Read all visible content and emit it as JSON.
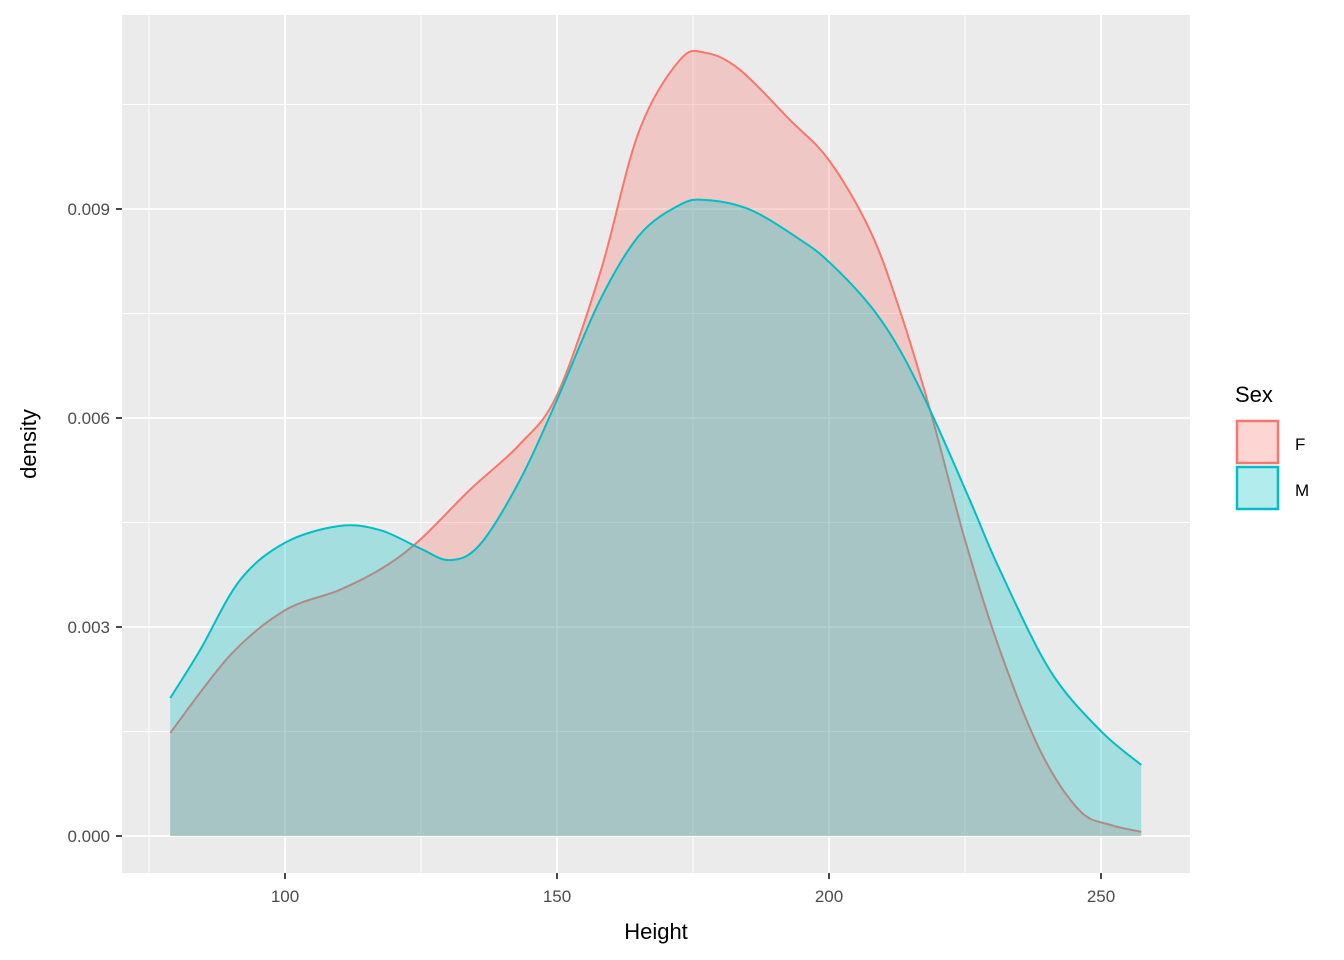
{
  "chart_data": {
    "type": "area",
    "subtype": "density",
    "title": "",
    "xlabel": "Height",
    "ylabel": "density",
    "xlim": [
      70,
      266.4
    ],
    "ylim": [
      -0.00053,
      0.01178
    ],
    "x_ticks": [
      100,
      150,
      200,
      250
    ],
    "x_tick_labels": [
      "100",
      "150",
      "200",
      "250"
    ],
    "y_ticks": [
      0,
      0.003,
      0.006,
      0.009
    ],
    "y_tick_labels": [
      "0.000",
      "0.003",
      "0.006",
      "0.009"
    ],
    "grid": true,
    "legend": {
      "title": "Sex",
      "placement": "right",
      "entries": [
        "F",
        "M"
      ]
    },
    "series": [
      {
        "name": "F",
        "color": "#F8766D",
        "points": [
          [
            78.9,
            0.00148
          ],
          [
            90,
            0.0026
          ],
          [
            100,
            0.00324
          ],
          [
            110,
            0.00353
          ],
          [
            118,
            0.00385
          ],
          [
            124.8,
            0.00425
          ],
          [
            134,
            0.00497
          ],
          [
            143,
            0.00561
          ],
          [
            150,
            0.00633
          ],
          [
            158,
            0.0081
          ],
          [
            165,
            0.0101
          ],
          [
            172.6,
            0.01114
          ],
          [
            177.4,
            0.01124
          ],
          [
            183.6,
            0.011
          ],
          [
            192.8,
            0.01028
          ],
          [
            200,
            0.0097
          ],
          [
            207.5,
            0.0087
          ],
          [
            213,
            0.00755
          ],
          [
            218.6,
            0.00611
          ],
          [
            225,
            0.00425
          ],
          [
            231.4,
            0.00267
          ],
          [
            238.8,
            0.00123
          ],
          [
            246,
            0.00037
          ],
          [
            251.7,
            0.00016
          ],
          [
            257.4,
            6e-05
          ]
        ]
      },
      {
        "name": "M",
        "color": "#00BFC4",
        "points": [
          [
            78.9,
            0.00198
          ],
          [
            84.4,
            0.00267
          ],
          [
            91.7,
            0.00367
          ],
          [
            100,
            0.00421
          ],
          [
            110,
            0.00445
          ],
          [
            117.5,
            0.00439
          ],
          [
            124.8,
            0.00413
          ],
          [
            130.3,
            0.00396
          ],
          [
            135.8,
            0.00418
          ],
          [
            143.2,
            0.00511
          ],
          [
            150,
            0.00626
          ],
          [
            157.9,
            0.00769
          ],
          [
            165.2,
            0.00863
          ],
          [
            172.6,
            0.00906
          ],
          [
            177.4,
            0.00913
          ],
          [
            185.5,
            0.00899
          ],
          [
            194.7,
            0.00856
          ],
          [
            200,
            0.00824
          ],
          [
            207.5,
            0.00762
          ],
          [
            213,
            0.00698
          ],
          [
            218.6,
            0.00611
          ],
          [
            225.9,
            0.00482
          ],
          [
            231.4,
            0.00382
          ],
          [
            240.6,
            0.00238
          ],
          [
            249.8,
            0.00152
          ],
          [
            257.4,
            0.00102
          ]
        ]
      }
    ]
  }
}
